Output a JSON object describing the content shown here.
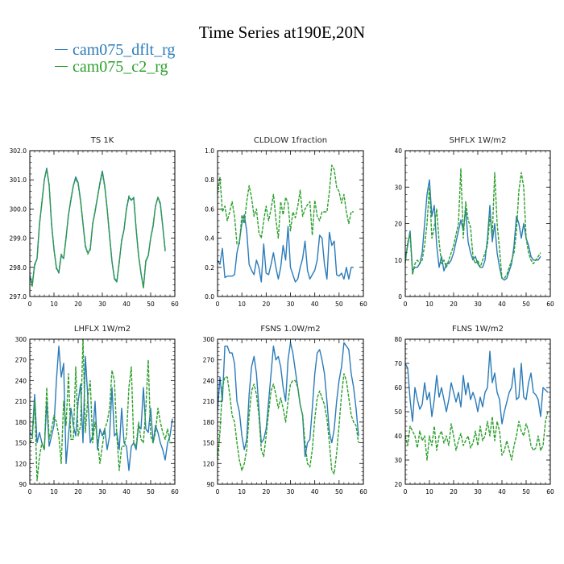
{
  "title": "Time Series at190E,20N",
  "colors": {
    "series1": "#2b7bb9",
    "series2": "#2ca02c"
  },
  "legend": [
    {
      "label": "cam075_dflt_rg",
      "color": "#2b7bb9"
    },
    {
      "label": "cam075_c2_rg",
      "color": "#2ca02c"
    }
  ],
  "chart_data": [
    {
      "type": "line",
      "title": "TS   1K",
      "xlim": [
        0,
        60
      ],
      "ylim": [
        297,
        302
      ],
      "xticks": [
        0,
        10,
        20,
        30,
        40,
        50,
        60
      ],
      "yticks": [
        297.0,
        298.0,
        299.0,
        300.0,
        301.0,
        302.0
      ],
      "ytick_labels": [
        "297.0",
        "298.0",
        "299.0",
        "300.0",
        "301.0",
        "302.0"
      ],
      "legend": "none",
      "series": [
        {
          "name": "cam075_dflt_rg",
          "values": [
            297.75,
            297.4,
            298.1,
            298.3,
            299.5,
            300.2,
            301.0,
            301.4,
            300.8,
            299.5,
            298.6,
            298.0,
            297.8,
            298.4,
            298.3,
            299.0,
            299.8,
            300.3,
            300.8,
            301.1,
            300.9,
            300.3,
            299.5,
            298.7,
            298.5,
            298.6,
            299.5,
            299.9,
            300.4,
            300.9,
            301.3,
            300.8,
            300.0,
            299.1,
            298.2,
            297.6,
            297.5,
            298.2,
            298.9,
            299.3,
            300.0,
            300.4,
            300.3,
            300.4,
            299.3,
            298.4,
            297.8,
            297.3,
            298.2,
            298.4,
            299.0,
            299.4,
            300.1,
            300.4,
            300.2,
            299.4,
            298.6
          ]
        },
        {
          "name": "cam075_c2_rg",
          "values": [
            297.7,
            297.35,
            298.05,
            298.3,
            299.45,
            300.25,
            301.0,
            301.35,
            300.85,
            299.45,
            298.65,
            297.95,
            297.85,
            298.45,
            298.3,
            299.05,
            299.8,
            300.35,
            300.8,
            301.05,
            300.85,
            300.25,
            299.5,
            298.75,
            298.45,
            298.65,
            299.45,
            299.95,
            300.4,
            300.85,
            301.25,
            300.75,
            300.0,
            299.05,
            298.2,
            297.65,
            297.5,
            298.15,
            298.95,
            299.3,
            300.05,
            300.45,
            300.3,
            300.35,
            299.3,
            298.4,
            297.8,
            297.3,
            298.25,
            298.4,
            299.0,
            299.45,
            300.1,
            300.4,
            300.15,
            299.4,
            298.55
          ]
        }
      ]
    },
    {
      "type": "line",
      "title": "CLDLOW   1fraction",
      "xlim": [
        0,
        60
      ],
      "ylim": [
        0,
        1
      ],
      "xticks": [
        0,
        10,
        20,
        30,
        40,
        50,
        60
      ],
      "yticks": [
        0.0,
        0.2,
        0.4,
        0.6,
        0.8,
        1.0
      ],
      "ytick_labels": [
        "0.0",
        "0.2",
        "0.4",
        "0.6",
        "0.8",
        "1.0"
      ],
      "legend": "none",
      "series": [
        {
          "name": "cam075_dflt_rg",
          "values": [
            0.25,
            0.22,
            0.33,
            0.13,
            0.14,
            0.14,
            0.14,
            0.15,
            0.3,
            0.38,
            0.5,
            0.56,
            0.45,
            0.22,
            0.18,
            0.15,
            0.25,
            0.2,
            0.1,
            0.36,
            0.16,
            0.15,
            0.22,
            0.3,
            0.2,
            0.12,
            0.2,
            0.35,
            0.25,
            0.48,
            0.2,
            0.15,
            0.1,
            0.12,
            0.2,
            0.26,
            0.38,
            0.18,
            0.12,
            0.15,
            0.18,
            0.25,
            0.42,
            0.4,
            0.22,
            0.12,
            0.44,
            0.35,
            0.38,
            0.15,
            0.14,
            0.16,
            0.12,
            0.2,
            0.12,
            0.2,
            0.2
          ]
        },
        {
          "name": "cam075_c2_rg",
          "values": [
            0.7,
            0.82,
            0.58,
            0.62,
            0.52,
            0.58,
            0.65,
            0.55,
            0.36,
            0.36,
            0.56,
            0.5,
            0.65,
            0.76,
            0.68,
            0.55,
            0.6,
            0.44,
            0.4,
            0.52,
            0.62,
            0.52,
            0.6,
            0.7,
            0.53,
            0.4,
            0.65,
            0.56,
            0.68,
            0.64,
            0.45,
            0.58,
            0.54,
            0.62,
            0.73,
            0.55,
            0.6,
            0.63,
            0.65,
            0.42,
            0.66,
            0.55,
            0.52,
            0.58,
            0.58,
            0.58,
            0.72,
            0.9,
            0.87,
            0.75,
            0.72,
            0.64,
            0.7,
            0.58,
            0.5,
            0.58,
            0.58
          ]
        }
      ]
    },
    {
      "type": "line",
      "title": "SHFLX   1W/m2",
      "xlim": [
        0,
        60
      ],
      "ylim": [
        0,
        40
      ],
      "xticks": [
        0,
        10,
        20,
        30,
        40,
        50,
        60
      ],
      "yticks": [
        0,
        10,
        20,
        30,
        40
      ],
      "ytick_labels": [
        "0",
        "10",
        "20",
        "30",
        "40"
      ],
      "legend": "none",
      "series": [
        {
          "name": "cam075_dflt_rg",
          "values": [
            10,
            14,
            18,
            7,
            8,
            8,
            9,
            12,
            20,
            28,
            32,
            22,
            25,
            14,
            8,
            11,
            7,
            9,
            9,
            10,
            12,
            15,
            18,
            21,
            18,
            24,
            15,
            12,
            10,
            11,
            9,
            8,
            8,
            10,
            16,
            25,
            15,
            20,
            12,
            8,
            5,
            4.5,
            5,
            7,
            9,
            14,
            22,
            20,
            16,
            20,
            16,
            14,
            11,
            10,
            10,
            10,
            11
          ]
        },
        {
          "name": "cam075_c2_rg",
          "values": [
            9,
            15,
            17,
            6,
            9,
            10,
            9,
            10,
            14,
            20,
            30,
            16,
            19,
            24,
            15,
            9,
            10,
            8,
            10,
            12,
            14,
            17,
            20,
            35,
            16,
            26,
            21,
            19,
            11,
            9,
            10,
            8,
            10,
            12,
            14,
            22,
            17,
            34,
            20,
            13,
            5,
            5,
            6,
            8,
            10,
            12,
            18,
            29,
            34,
            30,
            16,
            12,
            10,
            9,
            10,
            11,
            12
          ]
        }
      ]
    },
    {
      "type": "line",
      "title": "LHFLX   1W/m2",
      "xlim": [
        0,
        60
      ],
      "ylim": [
        90,
        300
      ],
      "xticks": [
        0,
        10,
        20,
        30,
        40,
        50,
        60
      ],
      "yticks": [
        90,
        120,
        150,
        180,
        210,
        240,
        270,
        300
      ],
      "ytick_labels": [
        "90",
        "120",
        "150",
        "180",
        "210",
        "240",
        "270",
        "300"
      ],
      "legend": "none",
      "series": [
        {
          "name": "cam075_dflt_rg",
          "values": [
            165,
            160,
            220,
            150,
            165,
            150,
            140,
            210,
            145,
            160,
            175,
            240,
            290,
            245,
            265,
            120,
            160,
            200,
            175,
            160,
            210,
            235,
            150,
            275,
            215,
            150,
            160,
            210,
            140,
            170,
            160,
            170,
            140,
            160,
            230,
            160,
            165,
            140,
            200,
            150,
            145,
            110,
            145,
            150,
            140,
            175,
            170,
            230,
            170,
            165,
            200,
            150,
            175,
            165,
            150,
            140,
            125,
            150,
            160,
            185
          ]
        },
        {
          "name": "cam075_c2_rg",
          "values": [
            150,
            155,
            210,
            95,
            130,
            150,
            140,
            230,
            155,
            170,
            190,
            180,
            160,
            120,
            210,
            175,
            250,
            155,
            155,
            260,
            160,
            175,
            300,
            165,
            215,
            240,
            150,
            180,
            155,
            120,
            145,
            170,
            180,
            200,
            255,
            240,
            160,
            110,
            145,
            145,
            160,
            230,
            260,
            150,
            145,
            180,
            155,
            150,
            200,
            270,
            160,
            150,
            165,
            200,
            180,
            165,
            155,
            170,
            150,
            150
          ]
        }
      ]
    },
    {
      "type": "line",
      "title": "FSNS   1.0W/m2",
      "xlim": [
        0,
        60
      ],
      "ylim": [
        90,
        300
      ],
      "xticks": [
        0,
        10,
        20,
        30,
        40,
        50,
        60
      ],
      "yticks": [
        90,
        120,
        150,
        180,
        210,
        240,
        270,
        300
      ],
      "ytick_labels": [
        "90",
        "120",
        "150",
        "180",
        "210",
        "240",
        "270",
        "300"
      ],
      "legend": "none",
      "series": [
        {
          "name": "cam075_dflt_rg",
          "values": [
            195,
            245,
            210,
            290,
            290,
            280,
            280,
            265,
            210,
            195,
            160,
            140,
            155,
            220,
            260,
            275,
            250,
            200,
            150,
            155,
            170,
            210,
            250,
            290,
            270,
            275,
            260,
            230,
            210,
            270,
            295,
            280,
            255,
            230,
            205,
            190,
            130,
            150,
            155,
            200,
            250,
            280,
            285,
            270,
            250,
            210,
            165,
            150,
            170,
            210,
            240,
            260,
            295,
            290,
            285,
            250,
            230,
            200,
            160
          ]
        },
        {
          "name": "cam075_c2_rg",
          "values": [
            125,
            165,
            230,
            245,
            245,
            220,
            190,
            180,
            150,
            125,
            110,
            120,
            140,
            190,
            225,
            235,
            220,
            190,
            140,
            130,
            160,
            195,
            225,
            235,
            220,
            200,
            215,
            200,
            180,
            210,
            235,
            240,
            240,
            230,
            205,
            190,
            150,
            120,
            115,
            140,
            185,
            215,
            225,
            215,
            205,
            185,
            150,
            110,
            105,
            135,
            175,
            220,
            250,
            240,
            215,
            190,
            180,
            175,
            150
          ]
        }
      ]
    },
    {
      "type": "line",
      "title": "FLNS   1W/m2",
      "xlim": [
        0,
        60
      ],
      "ylim": [
        20,
        80
      ],
      "xticks": [
        0,
        10,
        20,
        30,
        40,
        50,
        60
      ],
      "yticks": [
        20,
        30,
        40,
        50,
        60,
        70,
        80
      ],
      "ytick_labels": [
        "20",
        "30",
        "40",
        "50",
        "60",
        "70",
        "80"
      ],
      "legend": "none",
      "series": [
        {
          "name": "cam075_dflt_rg",
          "values": [
            70,
            68,
            55,
            46,
            60,
            55,
            51,
            53,
            62,
            55,
            58,
            48,
            55,
            65,
            56,
            60,
            55,
            50,
            55,
            62,
            58,
            54,
            58,
            52,
            65,
            57,
            62,
            55,
            58,
            55,
            50,
            56,
            52,
            58,
            60,
            75,
            62,
            66,
            58,
            55,
            45,
            50,
            54,
            58,
            60,
            68,
            55,
            56,
            70,
            56,
            55,
            62,
            66,
            58,
            57,
            55,
            48,
            60,
            59,
            58
          ]
        },
        {
          "name": "cam075_c2_rg",
          "values": [
            40,
            36,
            44,
            42,
            40,
            35,
            42,
            38,
            40,
            30,
            40,
            36,
            44,
            34,
            40,
            42,
            37,
            40,
            36,
            45,
            40,
            34,
            38,
            41,
            36,
            38,
            40,
            35,
            37,
            42,
            36,
            44,
            38,
            40,
            46,
            40,
            48,
            38,
            46,
            42,
            32,
            34,
            38,
            34,
            30,
            36,
            40,
            46,
            42,
            40,
            45,
            42,
            36,
            34,
            35,
            40,
            34,
            36,
            46,
            50
          ]
        }
      ]
    }
  ]
}
